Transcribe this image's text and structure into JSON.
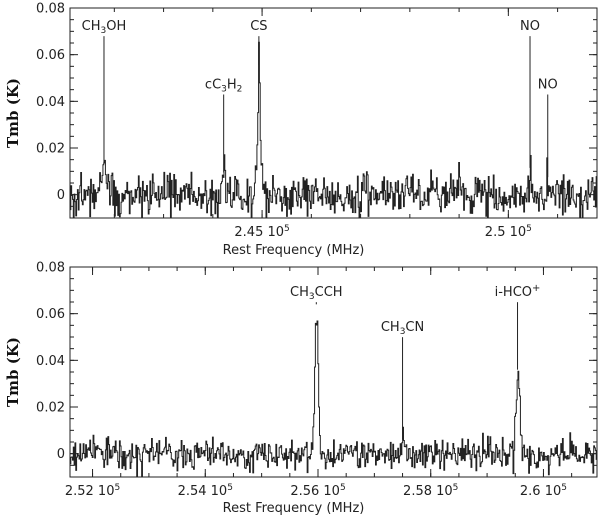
{
  "chart_data": [
    {
      "type": "line",
      "ylabel": "Tmb (K)",
      "xlabel": "Rest Frequency (MHz)",
      "xlim": [
        241100,
        251800
      ],
      "ylim": [
        -0.01,
        0.08
      ],
      "yticks": [
        {
          "value": 0,
          "label": "0"
        },
        {
          "value": 0.02,
          "label": "0.02"
        },
        {
          "value": 0.04,
          "label": "0.04"
        },
        {
          "value": 0.06,
          "label": "0.06"
        },
        {
          "value": 0.08,
          "label": "0.08"
        }
      ],
      "xticks": [
        {
          "value": 245000,
          "label": "2.45 10"
        },
        {
          "value": 250000,
          "label": "2.5 10"
        }
      ],
      "xminor_step": 1000,
      "tick_exponent": "5",
      "peaks": [
        {
          "center": 241790,
          "amp": 0.011,
          "width": 60
        },
        {
          "center": 244220,
          "amp": 0.008,
          "width": 30
        },
        {
          "center": 244935,
          "amp": 0.052,
          "width": 28
        },
        {
          "center": 250440,
          "amp": 0.009,
          "width": 30
        },
        {
          "center": 250800,
          "amp": 0.005,
          "width": 25
        }
      ],
      "noise_rms": 0.0045,
      "line_labels": [
        {
          "freq": 241790,
          "text": "CH3OH",
          "parts": [
            [
              "CH",
              ""
            ],
            [
              "3",
              "sub"
            ],
            [
              "OH",
              ""
            ]
          ],
          "label_y": 0.0705,
          "line_y": 0.0135
        },
        {
          "freq": 244220,
          "text": "cC3H2",
          "parts": [
            [
              "cC",
              ""
            ],
            [
              "3",
              "sub"
            ],
            [
              "H",
              ""
            ],
            [
              "2",
              "sub"
            ]
          ],
          "label_y": 0.0455,
          "line_y": 0.0095
        },
        {
          "freq": 244935,
          "text": "CS",
          "parts": [
            [
              "CS",
              ""
            ]
          ],
          "label_y": 0.0705,
          "line_y": 0.0555
        },
        {
          "freq": 250440,
          "text": "NO",
          "parts": [
            [
              "NO",
              ""
            ]
          ],
          "label_y": 0.0705,
          "line_y": 0.0115
        },
        {
          "freq": 250800,
          "text": "NO",
          "parts": [
            [
              "NO",
              ""
            ]
          ],
          "label_y": 0.0455,
          "line_y": 0.0075
        }
      ]
    },
    {
      "type": "line",
      "ylabel": "Tmb (K)",
      "xlabel": "Rest Frequency (MHz)",
      "xlim": [
        251600,
        260950
      ],
      "ylim": [
        -0.01,
        0.08
      ],
      "yticks": [
        {
          "value": 0,
          "label": "0"
        },
        {
          "value": 0.02,
          "label": "0.02"
        },
        {
          "value": 0.04,
          "label": "0.04"
        },
        {
          "value": 0.06,
          "label": "0.06"
        },
        {
          "value": 0.08,
          "label": "0.08"
        }
      ],
      "xticks": [
        {
          "value": 252000,
          "label": "2.52 10"
        },
        {
          "value": 254000,
          "label": "2.54 10"
        },
        {
          "value": 256000,
          "label": "2.56 10"
        },
        {
          "value": 258000,
          "label": "2.58 10"
        },
        {
          "value": 260000,
          "label": "2.6 10"
        }
      ],
      "xminor_step": 500,
      "tick_exponent": "5",
      "peaks": [
        {
          "center": 255970,
          "amp": 0.062,
          "width": 30
        },
        {
          "center": 257500,
          "amp": 0.005,
          "width": 25
        },
        {
          "center": 259540,
          "amp": 0.035,
          "width": 30
        }
      ],
      "noise_rms": 0.0032,
      "line_labels": [
        {
          "freq": 255970,
          "text": "CH3CCH",
          "parts": [
            [
              "CH",
              ""
            ],
            [
              "3",
              "sub"
            ],
            [
              "CCH",
              ""
            ]
          ],
          "label_y": 0.0675,
          "line_y": 0.064
        },
        {
          "freq": 257500,
          "text": "CH3CN",
          "parts": [
            [
              "CH",
              ""
            ],
            [
              "3",
              "sub"
            ],
            [
              "CN",
              ""
            ]
          ],
          "label_y": 0.0525,
          "line_y": 0.006
        },
        {
          "freq": 259540,
          "text": "i-HCO+",
          "parts": [
            [
              "i-HCO",
              ""
            ],
            [
              "+",
              "sup"
            ]
          ],
          "label_y": 0.0675,
          "line_y": 0.036
        }
      ]
    }
  ]
}
